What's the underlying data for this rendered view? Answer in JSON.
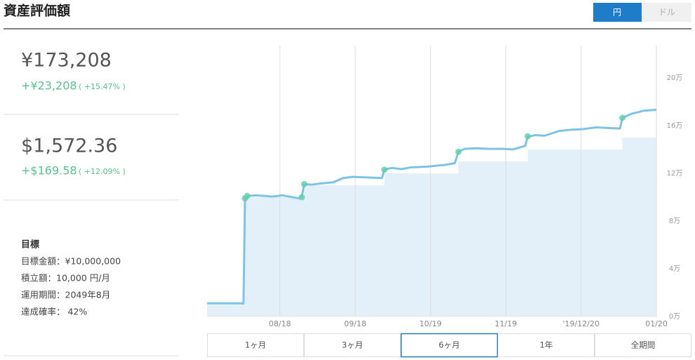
{
  "header": {
    "title": "資産評価額",
    "currency_toggle": [
      "円",
      "ドル"
    ]
  },
  "summary": [
    {
      "value": "¥173,208",
      "change": "+¥23,208",
      "percent": "( +15.47% )"
    },
    {
      "value": "$1,572.36",
      "change": "+$169.58",
      "percent": "( +12.09% )"
    }
  ],
  "goal": {
    "title": "目標",
    "lines": [
      "目標金額：¥10,000,000",
      "積立額：10,000 円/月",
      "運用期間：2049年8月",
      "達成確率： 42%"
    ]
  },
  "chart_data": {
    "type": "line",
    "xlim": [
      0,
      185
    ],
    "xticks": [
      {
        "value": 30,
        "label": "08/18"
      },
      {
        "value": 61,
        "label": "09/18"
      },
      {
        "value": 92,
        "label": "10/19"
      },
      {
        "value": 123,
        "label": "11/19"
      },
      {
        "value": 154,
        "label": "'19/12/20"
      },
      {
        "value": 185,
        "label": "01/20"
      }
    ],
    "ylim": [
      0,
      227000
    ],
    "yticks": [
      {
        "value": 0,
        "label": "0万"
      },
      {
        "value": 40000,
        "label": "4万"
      },
      {
        "value": 80000,
        "label": "8万"
      },
      {
        "value": 120000,
        "label": "12万"
      },
      {
        "value": 160000,
        "label": "16万"
      },
      {
        "value": 200000,
        "label": "20万"
      }
    ],
    "grid": true,
    "series": [
      {
        "type": "area",
        "color": "#e3f0f9",
        "x": [
          0,
          15.6,
          15.6,
          40,
          40,
          73,
          73,
          103.5,
          103.5,
          132,
          132,
          171,
          171,
          185
        ],
        "values": [
          10000,
          10000,
          100000,
          100000,
          110000,
          110000,
          120000,
          120000,
          130000,
          130000,
          140000,
          140000,
          150000,
          150000
        ]
      },
      {
        "type": "line",
        "color": "#7cc3e6",
        "x": [
          0,
          14,
          15,
          15.6,
          17,
          20,
          24,
          27,
          31,
          35,
          38,
          39,
          40,
          43,
          47,
          52,
          56,
          60,
          66,
          72,
          73,
          76,
          80,
          84,
          90,
          98,
          102,
          103.5,
          106,
          111,
          116,
          122,
          126,
          131,
          132,
          135,
          139,
          145,
          150,
          155,
          160,
          165,
          170,
          171,
          175,
          180,
          185
        ],
        "values": [
          11000,
          11000,
          10800,
          99000,
          101000,
          101500,
          101000,
          100500,
          101500,
          100000,
          99000,
          100500,
          111000,
          110500,
          111500,
          112500,
          116000,
          117000,
          116500,
          116000,
          123000,
          124500,
          123500,
          125000,
          125500,
          127000,
          128500,
          138000,
          140500,
          141000,
          140500,
          140500,
          140000,
          143000,
          150500,
          152000,
          151500,
          155500,
          156500,
          157000,
          158500,
          158000,
          157500,
          166500,
          170000,
          172500,
          173208
        ]
      },
      {
        "type": "scatter",
        "color": "#5fd0a8",
        "x": [
          15.6,
          16.5,
          39,
          40,
          73,
          103.5,
          132,
          171
        ],
        "values": [
          99000,
          101000,
          100000,
          111000,
          123000,
          138000,
          151000,
          166500
        ]
      }
    ]
  },
  "range_buttons": {
    "labels": [
      "1ヶ月",
      "3ヶ月",
      "6ヶ月",
      "1年",
      "全期間"
    ],
    "selected": 2
  }
}
